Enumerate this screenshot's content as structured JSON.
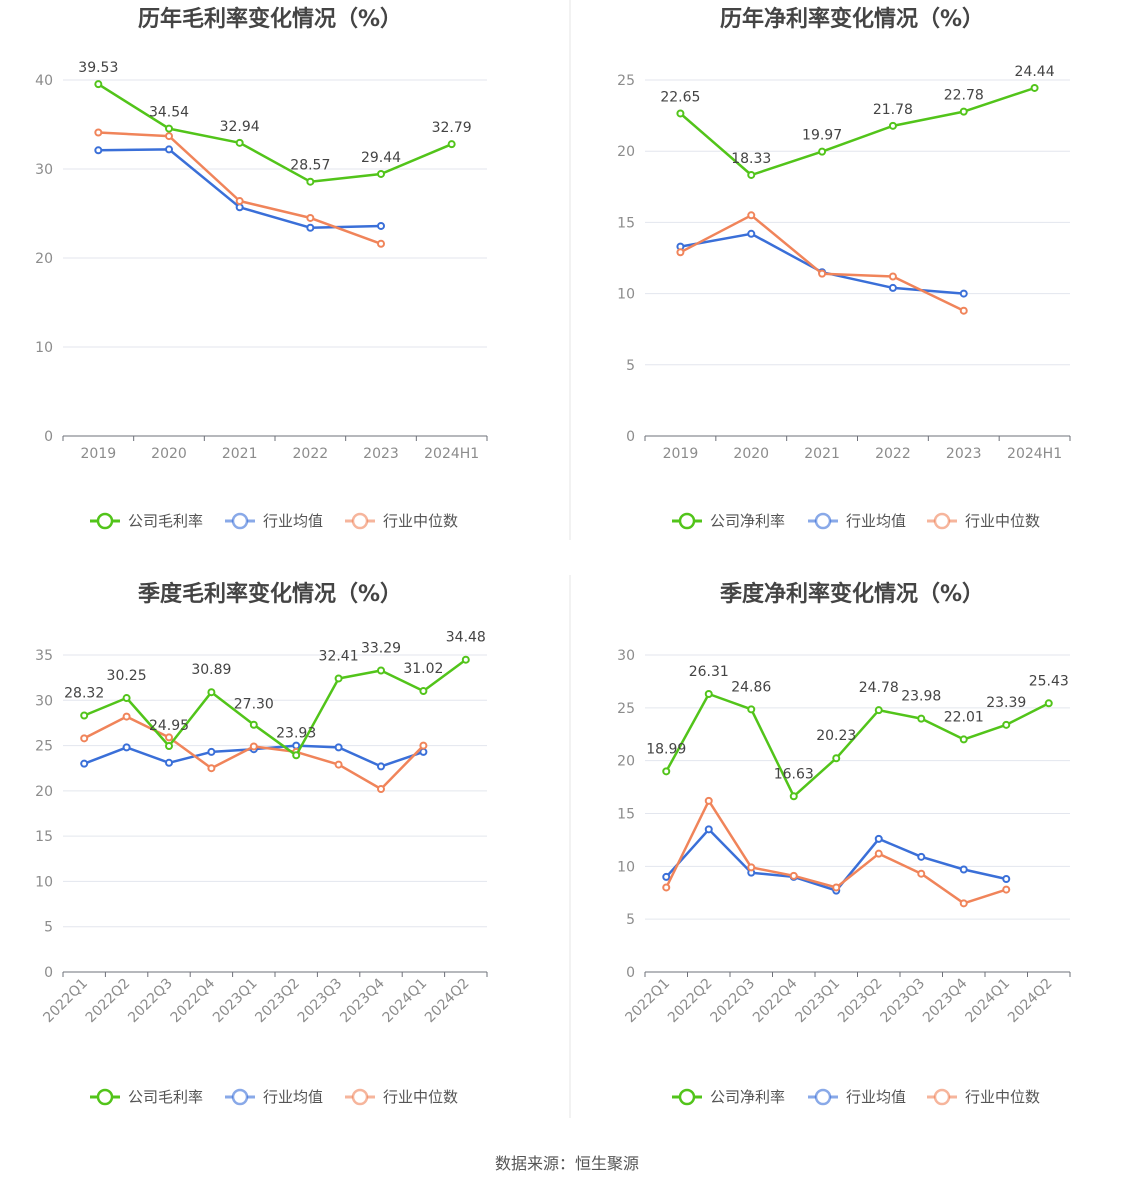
{
  "source_text": "数据来源：恒生聚源",
  "chart_data": [
    {
      "type": "line",
      "title": "历年毛利率变化情况（%）",
      "categories": [
        "2019",
        "2020",
        "2021",
        "2022",
        "2023",
        "2024H1"
      ],
      "ylim": [
        0,
        40
      ],
      "yticks": [
        0,
        10,
        20,
        30,
        40
      ],
      "grid": true,
      "legend_position": "bottom",
      "series": [
        {
          "name": "公司毛利率",
          "color": "#52c41a",
          "values": [
            39.53,
            34.54,
            32.94,
            28.57,
            29.44,
            32.79
          ],
          "labels": [
            "39.53",
            "34.54",
            "32.94",
            "28.57",
            "29.44",
            "32.79"
          ]
        },
        {
          "name": "行业均值",
          "color": "#3a6fd8",
          "values": [
            32.1,
            32.2,
            25.7,
            23.4,
            23.6,
            null
          ]
        },
        {
          "name": "行业中位数",
          "color": "#f0845a",
          "values": [
            34.1,
            33.7,
            26.4,
            24.5,
            21.6,
            null
          ]
        }
      ]
    },
    {
      "type": "line",
      "title": "历年净利率变化情况（%）",
      "categories": [
        "2019",
        "2020",
        "2021",
        "2022",
        "2023",
        "2024H1"
      ],
      "ylim": [
        0,
        25
      ],
      "yticks": [
        0,
        5,
        10,
        15,
        20,
        25
      ],
      "grid": true,
      "legend_position": "bottom",
      "series": [
        {
          "name": "公司净利率",
          "color": "#52c41a",
          "values": [
            22.65,
            18.33,
            19.97,
            21.78,
            22.78,
            24.44
          ],
          "labels": [
            "22.65",
            "18.33",
            "19.97",
            "21.78",
            "22.78",
            "24.44"
          ]
        },
        {
          "name": "行业均值",
          "color": "#3a6fd8",
          "values": [
            13.3,
            14.2,
            11.5,
            10.4,
            10.0,
            null
          ]
        },
        {
          "name": "行业中位数",
          "color": "#f0845a",
          "values": [
            12.9,
            15.5,
            11.4,
            11.2,
            8.8,
            null
          ]
        }
      ]
    },
    {
      "type": "line",
      "title": "季度毛利率变化情况（%）",
      "categories": [
        "2022Q1",
        "2022Q2",
        "2022Q3",
        "2022Q4",
        "2023Q1",
        "2023Q2",
        "2023Q3",
        "2023Q4",
        "2024Q1",
        "2024Q2"
      ],
      "ylim": [
        0,
        35
      ],
      "yticks": [
        0,
        5,
        10,
        15,
        20,
        25,
        30,
        35
      ],
      "grid": true,
      "legend_position": "bottom",
      "series": [
        {
          "name": "公司毛利率",
          "color": "#52c41a",
          "values": [
            28.32,
            30.25,
            24.95,
            30.89,
            27.3,
            23.93,
            32.41,
            33.29,
            31.02,
            34.48
          ],
          "labels": [
            "28.32",
            "30.25",
            "24.95",
            "30.89",
            "27.30",
            "23.93",
            "32.41",
            "33.29",
            "31.02",
            "34.48"
          ]
        },
        {
          "name": "行业均值",
          "color": "#3a6fd8",
          "values": [
            23.0,
            24.8,
            23.1,
            24.3,
            24.6,
            25.0,
            24.8,
            22.7,
            24.3,
            null
          ]
        },
        {
          "name": "行业中位数",
          "color": "#f0845a",
          "values": [
            25.8,
            28.2,
            25.9,
            22.5,
            24.9,
            24.3,
            22.9,
            20.2,
            25.0,
            null
          ]
        }
      ]
    },
    {
      "type": "line",
      "title": "季度净利率变化情况（%）",
      "categories": [
        "2022Q1",
        "2022Q2",
        "2022Q3",
        "2022Q4",
        "2023Q1",
        "2023Q2",
        "2023Q3",
        "2023Q4",
        "2024Q1",
        "2024Q2"
      ],
      "ylim": [
        0,
        30
      ],
      "yticks": [
        0,
        5,
        10,
        15,
        20,
        25,
        30
      ],
      "grid": true,
      "legend_position": "bottom",
      "series": [
        {
          "name": "公司净利率",
          "color": "#52c41a",
          "values": [
            18.99,
            26.31,
            24.86,
            16.63,
            20.23,
            24.78,
            23.98,
            22.01,
            23.39,
            25.43
          ],
          "labels": [
            "18.99",
            "26.31",
            "24.86",
            "16.63",
            "20.23",
            "24.78",
            "23.98",
            "22.01",
            "23.39",
            "25.43"
          ]
        },
        {
          "name": "行业均值",
          "color": "#3a6fd8",
          "values": [
            9.0,
            13.5,
            9.4,
            9.0,
            7.7,
            12.6,
            10.9,
            9.7,
            8.8,
            null
          ]
        },
        {
          "name": "行业中位数",
          "color": "#f0845a",
          "values": [
            8.0,
            16.2,
            9.9,
            9.1,
            8.0,
            11.2,
            9.3,
            6.5,
            7.8,
            null
          ]
        }
      ]
    }
  ]
}
